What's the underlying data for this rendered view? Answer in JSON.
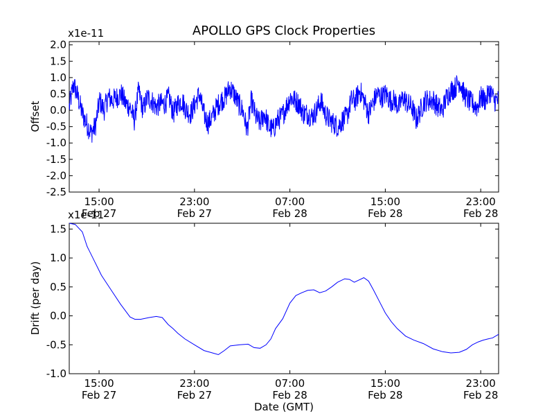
{
  "title": "APOLLO GPS Clock Properties",
  "chart_data": [
    {
      "type": "line",
      "name": "offset",
      "ylabel": "Offset",
      "exponent_label": "x1e-11",
      "ylim": [
        -2.5,
        2.1
      ],
      "yticks": [
        -2.5,
        -2.0,
        -1.5,
        -1.0,
        -0.5,
        0.0,
        0.5,
        1.0,
        1.5,
        2.0
      ],
      "ytick_labels": [
        "-2.5",
        "-2.0",
        "-1.5",
        "-1.0",
        "-0.5",
        "0.0",
        "0.5",
        "1.0",
        "1.5",
        "2.0"
      ],
      "xlim_hours": [
        12.5,
        48.5
      ],
      "xticks_hours": [
        15,
        23,
        31,
        39,
        47
      ],
      "xtick_labels": [
        [
          "15:00",
          "Feb 27"
        ],
        [
          "23:00",
          "Feb 27"
        ],
        [
          "07:00",
          "Feb 28"
        ],
        [
          "15:00",
          "Feb 28"
        ],
        [
          "23:00",
          "Feb 28"
        ]
      ],
      "color": "#0000ff",
      "series": [
        {
          "name": "Offset",
          "x_start_hours": 12.5,
          "x_end_hours": 48.5,
          "trend": [
            0.1,
            0.8,
            0.4,
            -0.1,
            -0.4,
            -0.7,
            -0.5,
            0.3,
            0.0,
            0.4,
            0.3,
            0.4,
            0.5,
            0.2,
            0.1,
            -0.3,
            0.6,
            0.0,
            0.4,
            0.3,
            0.1,
            0.2,
            0.2,
            0.4,
            -0.1,
            0.2,
            0.3,
            0.0,
            -0.1,
            0.2,
            0.5,
            -0.1,
            -0.4,
            -0.2,
            0.1,
            0.3,
            0.4,
            0.7,
            0.5,
            0.2,
            0.0,
            -0.6,
            0.3,
            -0.2,
            -0.4,
            -0.1,
            -0.5,
            -0.6,
            -0.3,
            -0.2,
            0.1,
            0.4,
            0.3,
            0.2,
            -0.1,
            -0.1,
            -0.2,
            0.0,
            0.3,
            -0.1,
            -0.3,
            -0.4,
            -0.5,
            -0.3,
            -0.2,
            0.3,
            0.3,
            0.6,
            0.3,
            -0.1,
            0.2,
            0.5,
            0.4,
            0.5,
            0.3,
            0.3,
            0.1,
            0.4,
            0.2,
            0.1,
            -0.3,
            0.0,
            0.3,
            0.3,
            0.3,
            0.1,
            0.0,
            0.4,
            0.6,
            0.7,
            0.9,
            0.5,
            0.3,
            0.2,
            0.1,
            0.4,
            0.3,
            0.6,
            0.3,
            0.3
          ],
          "noise_amplitude": 0.35
        }
      ]
    },
    {
      "type": "line",
      "name": "drift",
      "ylabel": "Drift (per day)",
      "exponent_label": "x1e-11",
      "xlabel": "Date (GMT)",
      "ylim": [
        -1.0,
        1.6
      ],
      "yticks": [
        -1.0,
        -0.5,
        0.0,
        0.5,
        1.0,
        1.5
      ],
      "ytick_labels": [
        "-1.0",
        "-0.5",
        "0.0",
        "0.5",
        "1.0",
        "1.5"
      ],
      "xlim_hours": [
        12.5,
        48.5
      ],
      "xticks_hours": [
        15,
        23,
        31,
        39,
        47
      ],
      "xtick_labels": [
        [
          "15:00",
          "Feb 27"
        ],
        [
          "23:00",
          "Feb 27"
        ],
        [
          "07:00",
          "Feb 28"
        ],
        [
          "15:00",
          "Feb 28"
        ],
        [
          "23:00",
          "Feb 28"
        ]
      ],
      "color": "#0000ff",
      "series": [
        {
          "name": "Drift",
          "x_hours": [
            12.5,
            13.0,
            13.6,
            14.0,
            14.6,
            15.2,
            16.0,
            16.8,
            17.6,
            18.0,
            18.5,
            19.2,
            19.8,
            20.3,
            20.8,
            21.2,
            21.6,
            22.2,
            23.0,
            23.8,
            24.5,
            25.0,
            25.5,
            26.0,
            26.8,
            27.5,
            28.0,
            28.5,
            29.0,
            29.4,
            29.8,
            30.4,
            31.0,
            31.5,
            32.0,
            32.5,
            33.0,
            33.5,
            34.0,
            34.5,
            35.0,
            35.6,
            36.0,
            36.4,
            36.8,
            37.2,
            37.6,
            38.0,
            38.5,
            39.0,
            39.5,
            40.0,
            40.7,
            41.4,
            42.2,
            43.0,
            43.8,
            44.5,
            45.2,
            45.8,
            46.3,
            46.8,
            47.2,
            47.6,
            48.0,
            48.5
          ],
          "y": [
            1.6,
            1.58,
            1.45,
            1.2,
            0.95,
            0.7,
            0.45,
            0.2,
            -0.02,
            -0.06,
            -0.06,
            -0.03,
            -0.01,
            -0.03,
            -0.15,
            -0.22,
            -0.3,
            -0.4,
            -0.5,
            -0.6,
            -0.64,
            -0.67,
            -0.6,
            -0.52,
            -0.5,
            -0.49,
            -0.55,
            -0.56,
            -0.5,
            -0.4,
            -0.22,
            -0.05,
            0.22,
            0.35,
            0.4,
            0.44,
            0.45,
            0.4,
            0.43,
            0.5,
            0.58,
            0.64,
            0.63,
            0.58,
            0.62,
            0.66,
            0.6,
            0.45,
            0.25,
            0.05,
            -0.1,
            -0.22,
            -0.35,
            -0.42,
            -0.48,
            -0.57,
            -0.62,
            -0.64,
            -0.63,
            -0.58,
            -0.5,
            -0.45,
            -0.42,
            -0.4,
            -0.38,
            -0.32
          ]
        }
      ]
    }
  ]
}
